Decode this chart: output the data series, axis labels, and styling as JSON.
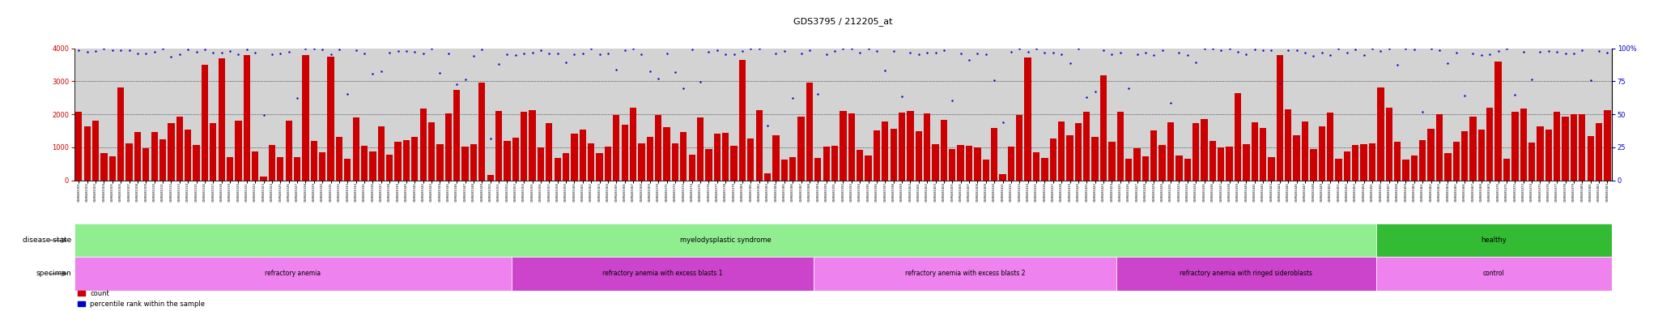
{
  "title": "GDS3795 / 212205_at",
  "left_tick_color": "#cc0000",
  "right_tick_color": "#0000cc",
  "bar_color": "#cc0000",
  "dot_color": "#0000cc",
  "bg_color": "#d3d3d3",
  "n_samples": 183,
  "ds_boundary": 155,
  "spec_boundaries": [
    0,
    52,
    88,
    124,
    155,
    183
  ],
  "ds_colors": [
    "#90ee90",
    "#33bb33"
  ],
  "ds_labels": [
    "myelodysplastic syndrome",
    "healthy"
  ],
  "spec_colors": [
    "#ee82ee",
    "#cc44cc",
    "#ee82ee",
    "#cc44cc",
    "#ee82ee"
  ],
  "spec_labels": [
    "refractory anemia",
    "refractory anemia with excess blasts 1",
    "refractory anemia with excess blasts 2",
    "refractory anemia with ringed sideroblasts",
    "control"
  ],
  "left_yticks": [
    0,
    1000,
    2000,
    3000,
    4000
  ],
  "right_yticks": [
    0,
    25,
    50,
    75,
    100
  ],
  "right_yticklabels": [
    "0",
    "25",
    "50",
    "75",
    "100%"
  ],
  "row_label_ds": "disease state",
  "row_label_sp": "specimen",
  "legend_count": "count",
  "legend_pct": "percentile rank within the sample"
}
